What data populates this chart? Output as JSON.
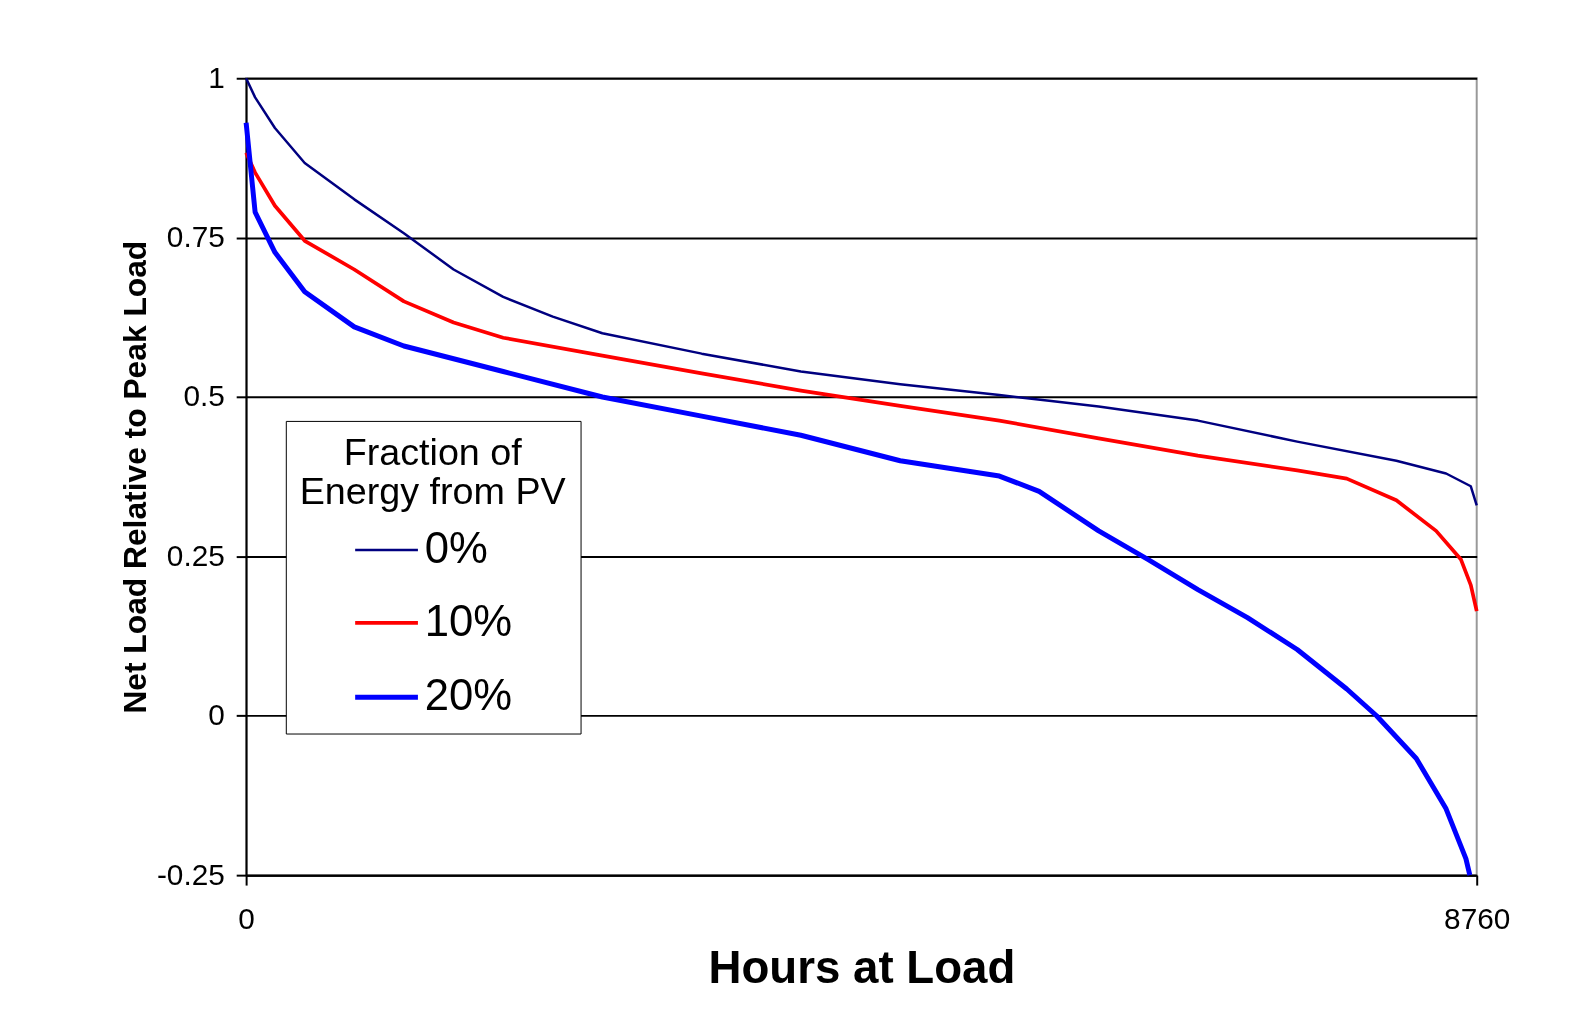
{
  "chart_data": {
    "type": "line",
    "xlabel": "Hours at Load",
    "ylabel": "Net Load Relative to Peak Load",
    "legend_title": "Fraction of Energy from PV",
    "legend": "left",
    "grid": "y",
    "marker": "none",
    "line_style": "solid",
    "xlim": [
      0,
      8760
    ],
    "xticks": [
      0,
      8760
    ],
    "ylim": [
      -0.25,
      1
    ],
    "yticks": [
      -0.25,
      0,
      0.25,
      0.5,
      0.75,
      1
    ],
    "series": [
      {
        "name": "0%",
        "color": "#000080",
        "x": [
          0,
          64,
          205,
          417,
          770,
          1123,
          1477,
          1830,
          2183,
          2536,
          3243,
          3949,
          4656,
          5362,
          5716,
          6069,
          6775,
          7482,
          8188,
          8542,
          8718,
          8760
        ],
        "values": [
          1.0,
          0.97,
          0.922,
          0.867,
          0.81,
          0.757,
          0.7,
          0.657,
          0.626,
          0.6,
          0.568,
          0.54,
          0.52,
          0.503,
          0.494,
          0.485,
          0.463,
          0.43,
          0.4,
          0.38,
          0.36,
          0.33
        ]
      },
      {
        "name": "10%",
        "color": "#ff0000",
        "x": [
          0,
          64,
          205,
          417,
          770,
          1123,
          1477,
          1830,
          2536,
          3243,
          3949,
          4656,
          5362,
          6069,
          6775,
          7482,
          7835,
          8188,
          8471,
          8648,
          8718,
          8760
        ],
        "values": [
          0.883,
          0.852,
          0.8,
          0.745,
          0.7,
          0.65,
          0.617,
          0.593,
          0.565,
          0.537,
          0.51,
          0.486,
          0.463,
          0.435,
          0.408,
          0.385,
          0.372,
          0.338,
          0.29,
          0.245,
          0.205,
          0.164
        ]
      },
      {
        "name": "20%",
        "color": "#0000ff",
        "x": [
          0,
          64,
          205,
          417,
          770,
          1123,
          1830,
          2536,
          3243,
          3949,
          4656,
          5362,
          5645,
          6069,
          6422,
          6775,
          7128,
          7482,
          7835,
          8047,
          8330,
          8542,
          8683,
          8711
        ],
        "values": [
          0.93,
          0.79,
          0.727,
          0.665,
          0.61,
          0.58,
          0.54,
          0.5,
          0.47,
          0.44,
          0.4,
          0.376,
          0.352,
          0.29,
          0.245,
          0.198,
          0.154,
          0.104,
          0.042,
          0.0,
          -0.067,
          -0.146,
          -0.224,
          -0.25
        ]
      }
    ]
  }
}
